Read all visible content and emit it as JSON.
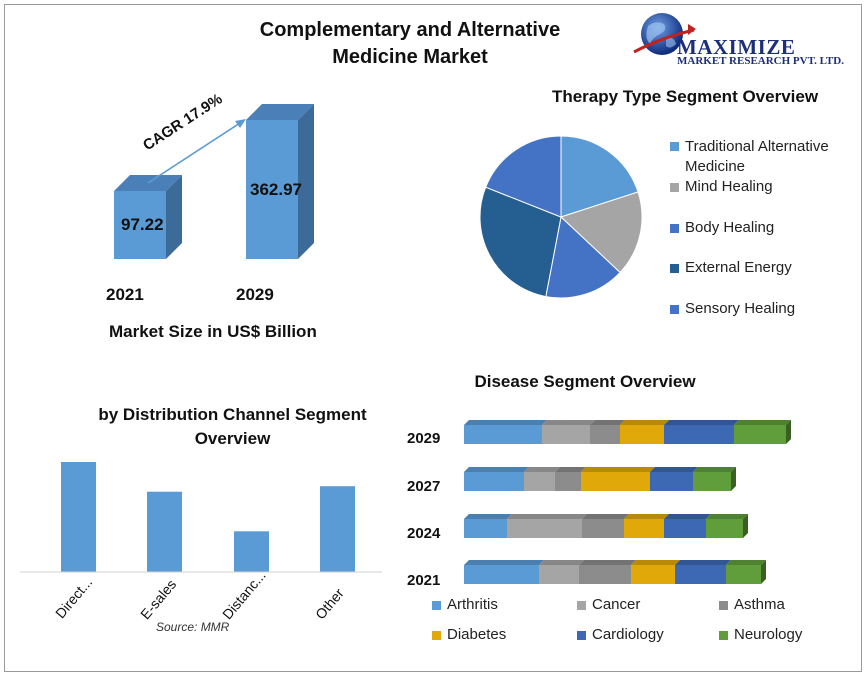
{
  "main_title_line1": "Complementary and Alternative",
  "main_title_line2": "Medicine Market",
  "logo": {
    "name": "MAXIMIZE",
    "subtitle": "MARKET RESEARCH PVT. LTD."
  },
  "source": "Source: MMR",
  "colors": {
    "bar_blue": "#5b9bd5",
    "arthritis": "#5b9bd5",
    "cancer": "#a5a5a5",
    "asthma": "#8c8c8c",
    "diabetes": "#e1a80a",
    "cardiology": "#3d68b3",
    "neurology": "#5f9e3a"
  },
  "chart_data": [
    {
      "type": "bar",
      "id": "market-size",
      "title": "Market Size in US$ Billion",
      "categories": [
        "2021",
        "2029"
      ],
      "values": [
        97.22,
        362.97
      ],
      "value_labels": [
        "97.22",
        "362.97"
      ],
      "annotation": "CAGR 17.9%"
    },
    {
      "type": "pie",
      "id": "therapy-type",
      "title": "Therapy Type Segment Overview",
      "labels": [
        "Traditional Alternative Medicine",
        "Mind Healing",
        "Body Healing",
        "External Energy",
        "Sensory Healing"
      ],
      "values": [
        20,
        17,
        16,
        28,
        19
      ],
      "colors": [
        "#5b9bd5",
        "#a5a5a5",
        "#4472c4",
        "#255e91",
        "#4472c4"
      ]
    },
    {
      "type": "bar",
      "id": "distribution-channel",
      "title_line1": "by Distribution Channel Segment",
      "title_line2": "Overview",
      "categories": [
        "Direct...",
        "E-sales",
        "Distanc...",
        "Other"
      ],
      "values": [
        100,
        73,
        37,
        78
      ],
      "ylim": [
        0,
        100
      ]
    },
    {
      "type": "bar",
      "orientation": "horizontal-stacked",
      "id": "disease",
      "title": "Disease Segment Overview",
      "categories": [
        "2029",
        "2027",
        "2024",
        "2021"
      ],
      "series": [
        {
          "name": "Arthritis",
          "values": [
            78,
            60,
            43,
            75
          ]
        },
        {
          "name": "Cancer",
          "values": [
            48,
            31,
            75,
            40
          ]
        },
        {
          "name": "Asthma",
          "values": [
            30,
            26,
            42,
            52
          ]
        },
        {
          "name": "Diabetes",
          "values": [
            44,
            69,
            40,
            44
          ]
        },
        {
          "name": "Cardiology",
          "values": [
            70,
            43,
            42,
            51
          ]
        },
        {
          "name": "Neurology",
          "values": [
            52,
            38,
            37,
            35
          ]
        }
      ]
    }
  ]
}
